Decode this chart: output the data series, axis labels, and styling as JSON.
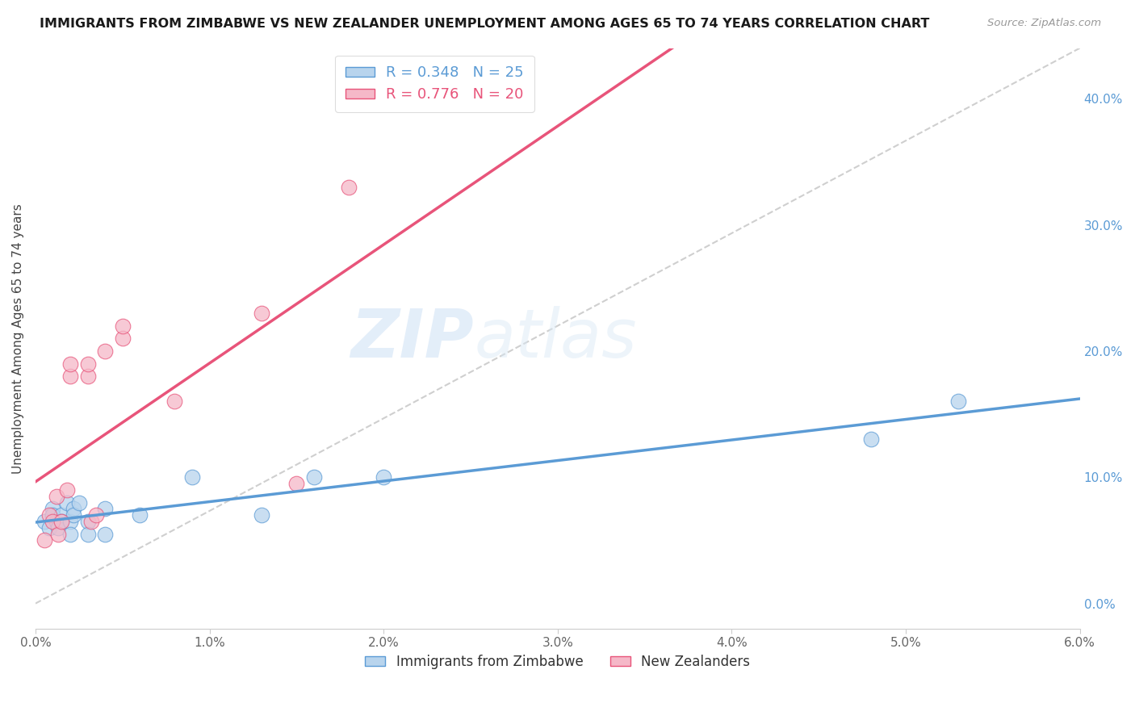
{
  "title": "IMMIGRANTS FROM ZIMBABWE VS NEW ZEALANDER UNEMPLOYMENT AMONG AGES 65 TO 74 YEARS CORRELATION CHART",
  "source": "Source: ZipAtlas.com",
  "ylabel": "Unemployment Among Ages 65 to 74 years",
  "xlim": [
    0.0,
    0.06
  ],
  "ylim": [
    -0.02,
    0.44
  ],
  "ylim_display": [
    0.0,
    0.44
  ],
  "xticks": [
    0.0,
    0.01,
    0.02,
    0.03,
    0.04,
    0.05,
    0.06
  ],
  "xticklabels": [
    "0.0%",
    "1.0%",
    "2.0%",
    "3.0%",
    "4.0%",
    "5.0%",
    "6.0%"
  ],
  "yticks_right": [
    0.0,
    0.1,
    0.2,
    0.3,
    0.4
  ],
  "yticklabels_right": [
    "0.0%",
    "10.0%",
    "20.0%",
    "30.0%",
    "40.0%"
  ],
  "blue_label": "Immigrants from Zimbabwe",
  "pink_label": "New Zealanders",
  "R_blue": "0.348",
  "N_blue": "25",
  "R_pink": "0.776",
  "N_pink": "20",
  "blue_color": "#b8d4ed",
  "pink_color": "#f5b8c8",
  "blue_line_color": "#5b9bd5",
  "pink_line_color": "#e8547a",
  "watermark_zip": "ZIP",
  "watermark_atlas": "atlas",
  "blue_x": [
    0.0005,
    0.0008,
    0.001,
    0.001,
    0.0012,
    0.0013,
    0.0015,
    0.0015,
    0.0018,
    0.002,
    0.002,
    0.0022,
    0.0022,
    0.0025,
    0.003,
    0.003,
    0.004,
    0.004,
    0.006,
    0.009,
    0.013,
    0.016,
    0.02,
    0.048,
    0.053
  ],
  "blue_y": [
    0.065,
    0.06,
    0.075,
    0.07,
    0.065,
    0.06,
    0.07,
    0.065,
    0.08,
    0.065,
    0.055,
    0.075,
    0.07,
    0.08,
    0.065,
    0.055,
    0.055,
    0.075,
    0.07,
    0.1,
    0.07,
    0.1,
    0.1,
    0.13,
    0.16
  ],
  "pink_x": [
    0.0005,
    0.0008,
    0.001,
    0.0012,
    0.0013,
    0.0015,
    0.0018,
    0.002,
    0.002,
    0.003,
    0.003,
    0.0032,
    0.0035,
    0.004,
    0.005,
    0.005,
    0.008,
    0.013,
    0.015,
    0.018
  ],
  "pink_y": [
    0.05,
    0.07,
    0.065,
    0.085,
    0.055,
    0.065,
    0.09,
    0.18,
    0.19,
    0.18,
    0.19,
    0.065,
    0.07,
    0.2,
    0.21,
    0.22,
    0.16,
    0.23,
    0.095,
    0.33
  ]
}
